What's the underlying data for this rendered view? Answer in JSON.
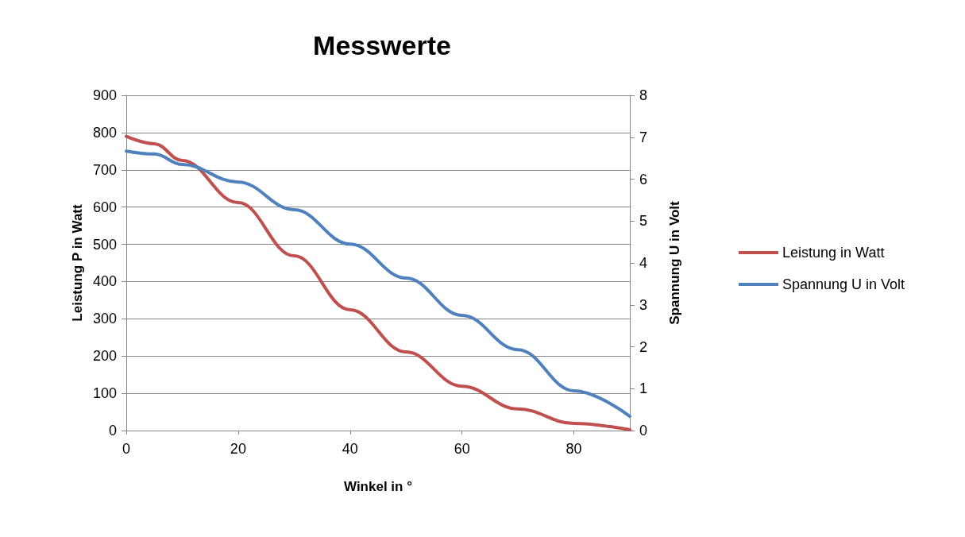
{
  "chart_data": {
    "type": "line",
    "title": "Messwerte",
    "xlabel": "Winkel in °",
    "ylabel": "Leistung P in Watt",
    "y2label": "Spannung U in Volt",
    "x": [
      0,
      5,
      10,
      20,
      30,
      40,
      50,
      60,
      70,
      80,
      90
    ],
    "series": [
      {
        "name": "Leistung in Watt",
        "color": "#c0504d",
        "values": [
          790,
          770,
          725,
          612,
          469,
          324,
          211,
          119,
          58,
          19,
          2
        ]
      },
      {
        "name": "Spannung U in Volt",
        "color": "#4f81bd",
        "axis": "y2",
        "values": [
          6.67,
          6.6,
          6.35,
          5.93,
          5.27,
          4.45,
          3.64,
          2.75,
          1.93,
          0.95,
          0.34
        ]
      }
    ],
    "xlim": [
      0,
      90
    ],
    "xticks": [
      0,
      20,
      40,
      60,
      80
    ],
    "ylim": [
      0,
      900
    ],
    "yticks": [
      0,
      100,
      200,
      300,
      400,
      500,
      600,
      700,
      800,
      900
    ],
    "y2lim": [
      0,
      8
    ],
    "y2ticks": [
      0,
      1,
      2,
      3,
      4,
      5,
      6,
      7,
      8
    ],
    "grid": "y",
    "legend": "right",
    "marker": "none",
    "line_style": "solid"
  }
}
